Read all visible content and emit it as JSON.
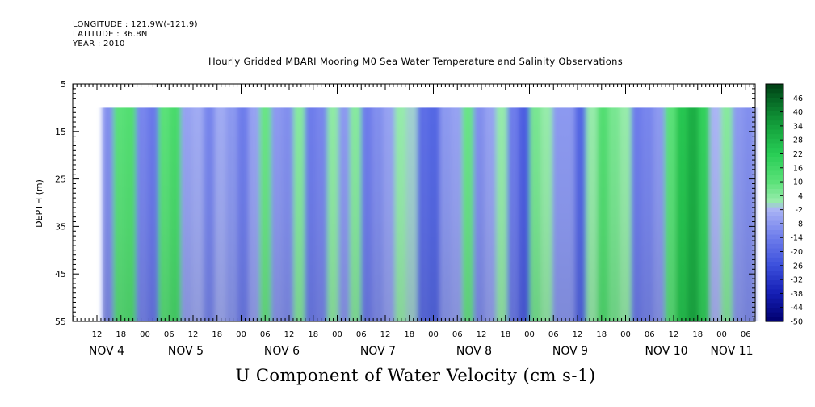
{
  "header": {
    "longitude": "LONGITUDE : 121.9W(-121.9)",
    "latitude": "LATITUDE : 36.8N",
    "year": "YEAR : 2010"
  },
  "chart_data": {
    "type": "heatmap",
    "title": "Hourly Gridded MBARI Mooring M0 Sea Water Temperature and Salinity Observations",
    "xlabel": "U Component of Water Velocity (cm s-1)",
    "ylabel": "DEPTH (m)",
    "y_ticks": [
      5,
      15,
      25,
      35,
      45,
      55
    ],
    "ylim": [
      55,
      5
    ],
    "x_hour_ticks": [
      "12",
      "18",
      "00",
      "06",
      "12",
      "18",
      "00",
      "06",
      "12",
      "18",
      "00",
      "06",
      "12",
      "18",
      "00",
      "06",
      "12",
      "18",
      "00",
      "06",
      "12",
      "18",
      "00",
      "06",
      "12",
      "18",
      "00",
      "06"
    ],
    "x_day_labels": [
      "NOV  4",
      "NOV  5",
      "NOV  6",
      "NOV  7",
      "NOV  8",
      "NOV  9",
      "NOV 10",
      "NOV 11"
    ],
    "data_depth_range": [
      10,
      55
    ],
    "colorbar": {
      "labels": [
        "46",
        "40",
        "34",
        "28",
        "22",
        "16",
        "10",
        "4",
        "-2",
        "-8",
        "-14",
        "-20",
        "-26",
        "-32",
        "-38",
        "-44",
        "-50"
      ],
      "min": -50,
      "max": 52
    },
    "band_values": [
      -10,
      10,
      12,
      -12,
      -15,
      10,
      14,
      -6,
      -4,
      -12,
      -4,
      -8,
      -14,
      -6,
      8,
      -8,
      -10,
      4,
      -14,
      -12,
      3,
      -8,
      4,
      -14,
      -10,
      -6,
      2,
      0,
      -18,
      -20,
      -8,
      -6,
      8,
      -10,
      -6,
      2,
      -14,
      -22,
      6,
      2,
      -8,
      -8,
      -20,
      2,
      12,
      6,
      2,
      -14,
      -12,
      -8,
      10,
      24,
      30,
      20,
      -2,
      4,
      -8,
      -10
    ],
    "colors": {
      "strong_negative": "#000080",
      "negative": "#5a66e0",
      "weak_negative": "#a8b2f0",
      "weak_positive": "#9cf0ac",
      "positive": "#2ed158",
      "strong_positive": "#004018"
    }
  }
}
